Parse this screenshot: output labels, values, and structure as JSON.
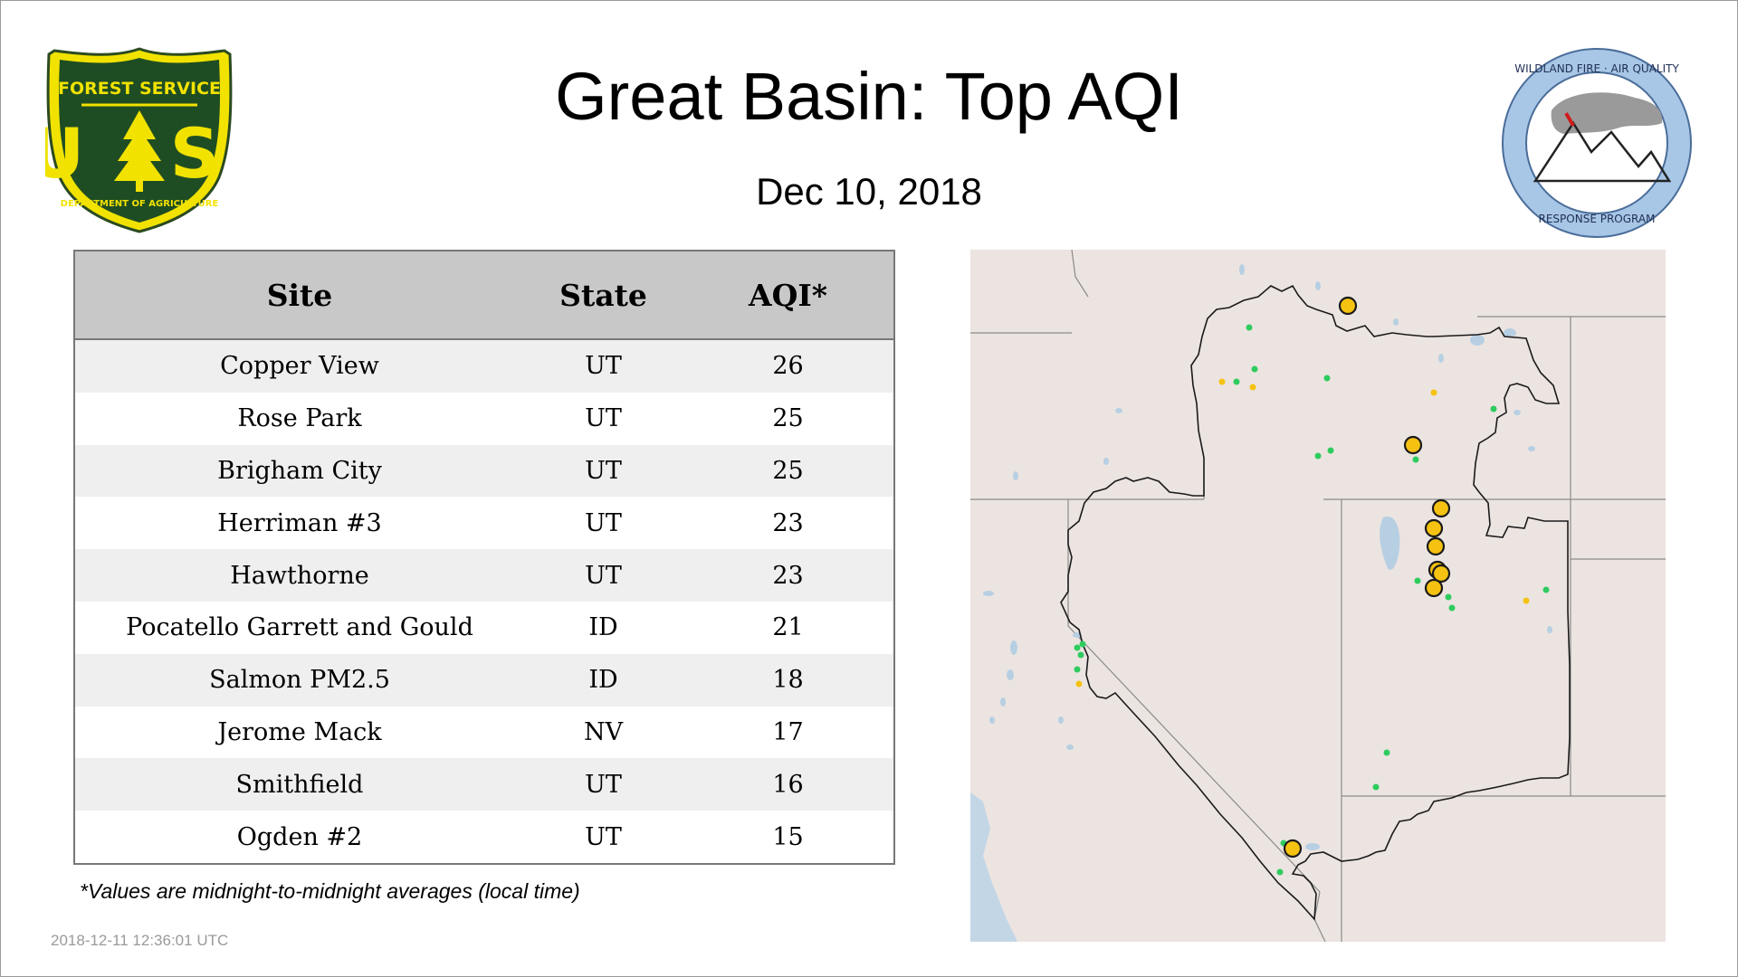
{
  "header": {
    "title": "Great Basin: Top AQI",
    "date": "Dec 10, 2018"
  },
  "logos": {
    "left": {
      "icon": "forest-service-shield-logo",
      "top_text": "FOREST SERVICE",
      "big_text": "U S",
      "bottom_text": "DEPARTMENT OF AGRICULTURE"
    },
    "right": {
      "icon": "wildland-fire-air-quality-logo",
      "top_text": "WILDLAND FIRE · AIR QUALITY",
      "bottom_text": "RESPONSE PROGRAM"
    }
  },
  "table": {
    "headers": {
      "site": "Site",
      "state": "State",
      "aqi": "AQI*"
    },
    "rows": [
      {
        "site": "Copper View",
        "state": "UT",
        "aqi": "26"
      },
      {
        "site": "Rose Park",
        "state": "UT",
        "aqi": "25"
      },
      {
        "site": "Brigham City",
        "state": "UT",
        "aqi": "25"
      },
      {
        "site": "Herriman #3",
        "state": "UT",
        "aqi": "23"
      },
      {
        "site": "Hawthorne",
        "state": "UT",
        "aqi": "23"
      },
      {
        "site": "Pocatello Garrett and Gould",
        "state": "ID",
        "aqi": "21"
      },
      {
        "site": "Salmon PM2.5",
        "state": "ID",
        "aqi": "18"
      },
      {
        "site": "Jerome Mack",
        "state": "NV",
        "aqi": "17"
      },
      {
        "site": "Smithfield",
        "state": "UT",
        "aqi": "16"
      },
      {
        "site": "Ogden #2",
        "state": "UT",
        "aqi": "15"
      }
    ],
    "footnote": "*Values are midnight-to-midnight averages (local time)"
  },
  "timestamp": "2018-12-11 12:36:01 UTC",
  "map": {
    "region": "Great Basin",
    "colors": {
      "background": "#ece4e1",
      "water": "#b7cfe2",
      "ocean": "#c3d6e6",
      "state_lines": "#8a8a8a",
      "boundary": "#1a1a1a",
      "good": "#2ecc5e",
      "moderate": "#f5c211"
    }
  }
}
